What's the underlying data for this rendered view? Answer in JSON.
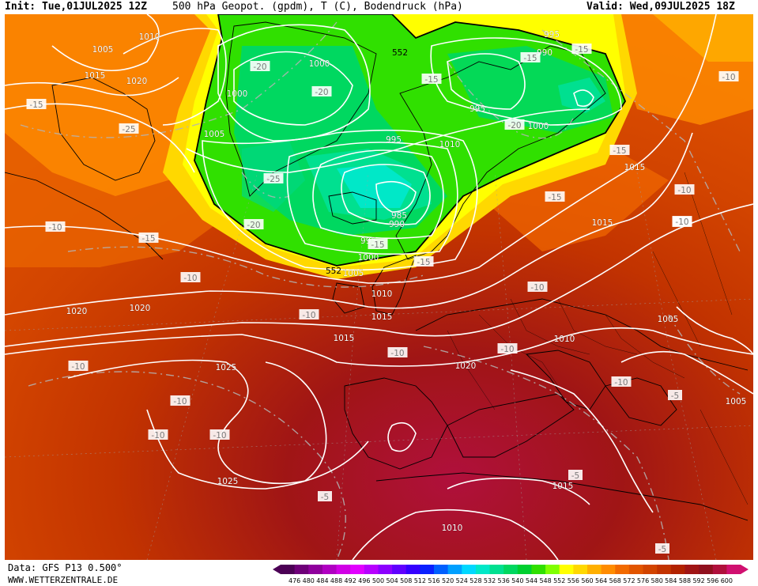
{
  "header": {
    "init": "Init: Tue,01JUL2025 12Z",
    "title": "500 hPa Geopot. (gpdm), T (C), Bodendruck (hPa)",
    "valid": "Valid: Wed,09JUL2025 18Z"
  },
  "footer": {
    "data_source": "Data: GFS P13 0.500°",
    "website": "WWW.WETTERZENTRALE.DE"
  },
  "colorbar": {
    "values": [
      "476",
      "480",
      "484",
      "488",
      "492",
      "496",
      "500",
      "504",
      "508",
      "512",
      "516",
      "520",
      "524",
      "528",
      "532",
      "536",
      "540",
      "544",
      "548",
      "552",
      "556",
      "560",
      "564",
      "568",
      "572",
      "576",
      "580",
      "584",
      "588",
      "592",
      "596",
      "600"
    ],
    "colors": [
      "#4b0055",
      "#6e0079",
      "#8f009d",
      "#b000c2",
      "#d100e6",
      "#e200ff",
      "#b700ff",
      "#8c00ff",
      "#6000ff",
      "#3500ff",
      "#0a20ff",
      "#0060ff",
      "#00a0ff",
      "#00d8ff",
      "#00e8c8",
      "#00e090",
      "#00d860",
      "#00d030",
      "#30e000",
      "#80ff00",
      "#ffff00",
      "#ffd800",
      "#ffb000",
      "#ff8c00",
      "#f26a00",
      "#e25500",
      "#d24400",
      "#c23300",
      "#b22200",
      "#a01515",
      "#90101e",
      "#b0103c",
      "#d01070"
    ]
  },
  "map": {
    "pressure_labels": [
      "1010",
      "1005",
      "1015",
      "1020",
      "1005",
      "1000",
      "1000",
      "995",
      "990",
      "995",
      "1000",
      "995",
      "985",
      "990",
      "995",
      "1000",
      "1005",
      "1010",
      "1015",
      "1015",
      "1020",
      "1020",
      "1025",
      "1025",
      "1015",
      "1010",
      "1015",
      "1010",
      "1005",
      "1020",
      "1015",
      "1010",
      "1005"
    ],
    "temperature_labels": [
      "-10",
      "-15",
      "-25",
      "-20",
      "-15",
      "-15",
      "-10",
      "-15",
      "-15",
      "-20",
      "-10",
      "-15",
      "-25",
      "-20",
      "-15",
      "-10",
      "-15",
      "-20",
      "-15",
      "-10",
      "-10",
      "-10",
      "-10",
      "-10",
      "-10",
      "-10",
      "-10",
      "-10",
      "-10",
      "-10",
      "-5",
      "-5",
      "-5",
      "-5"
    ],
    "geopotential_labels": [
      "552",
      "552"
    ]
  }
}
